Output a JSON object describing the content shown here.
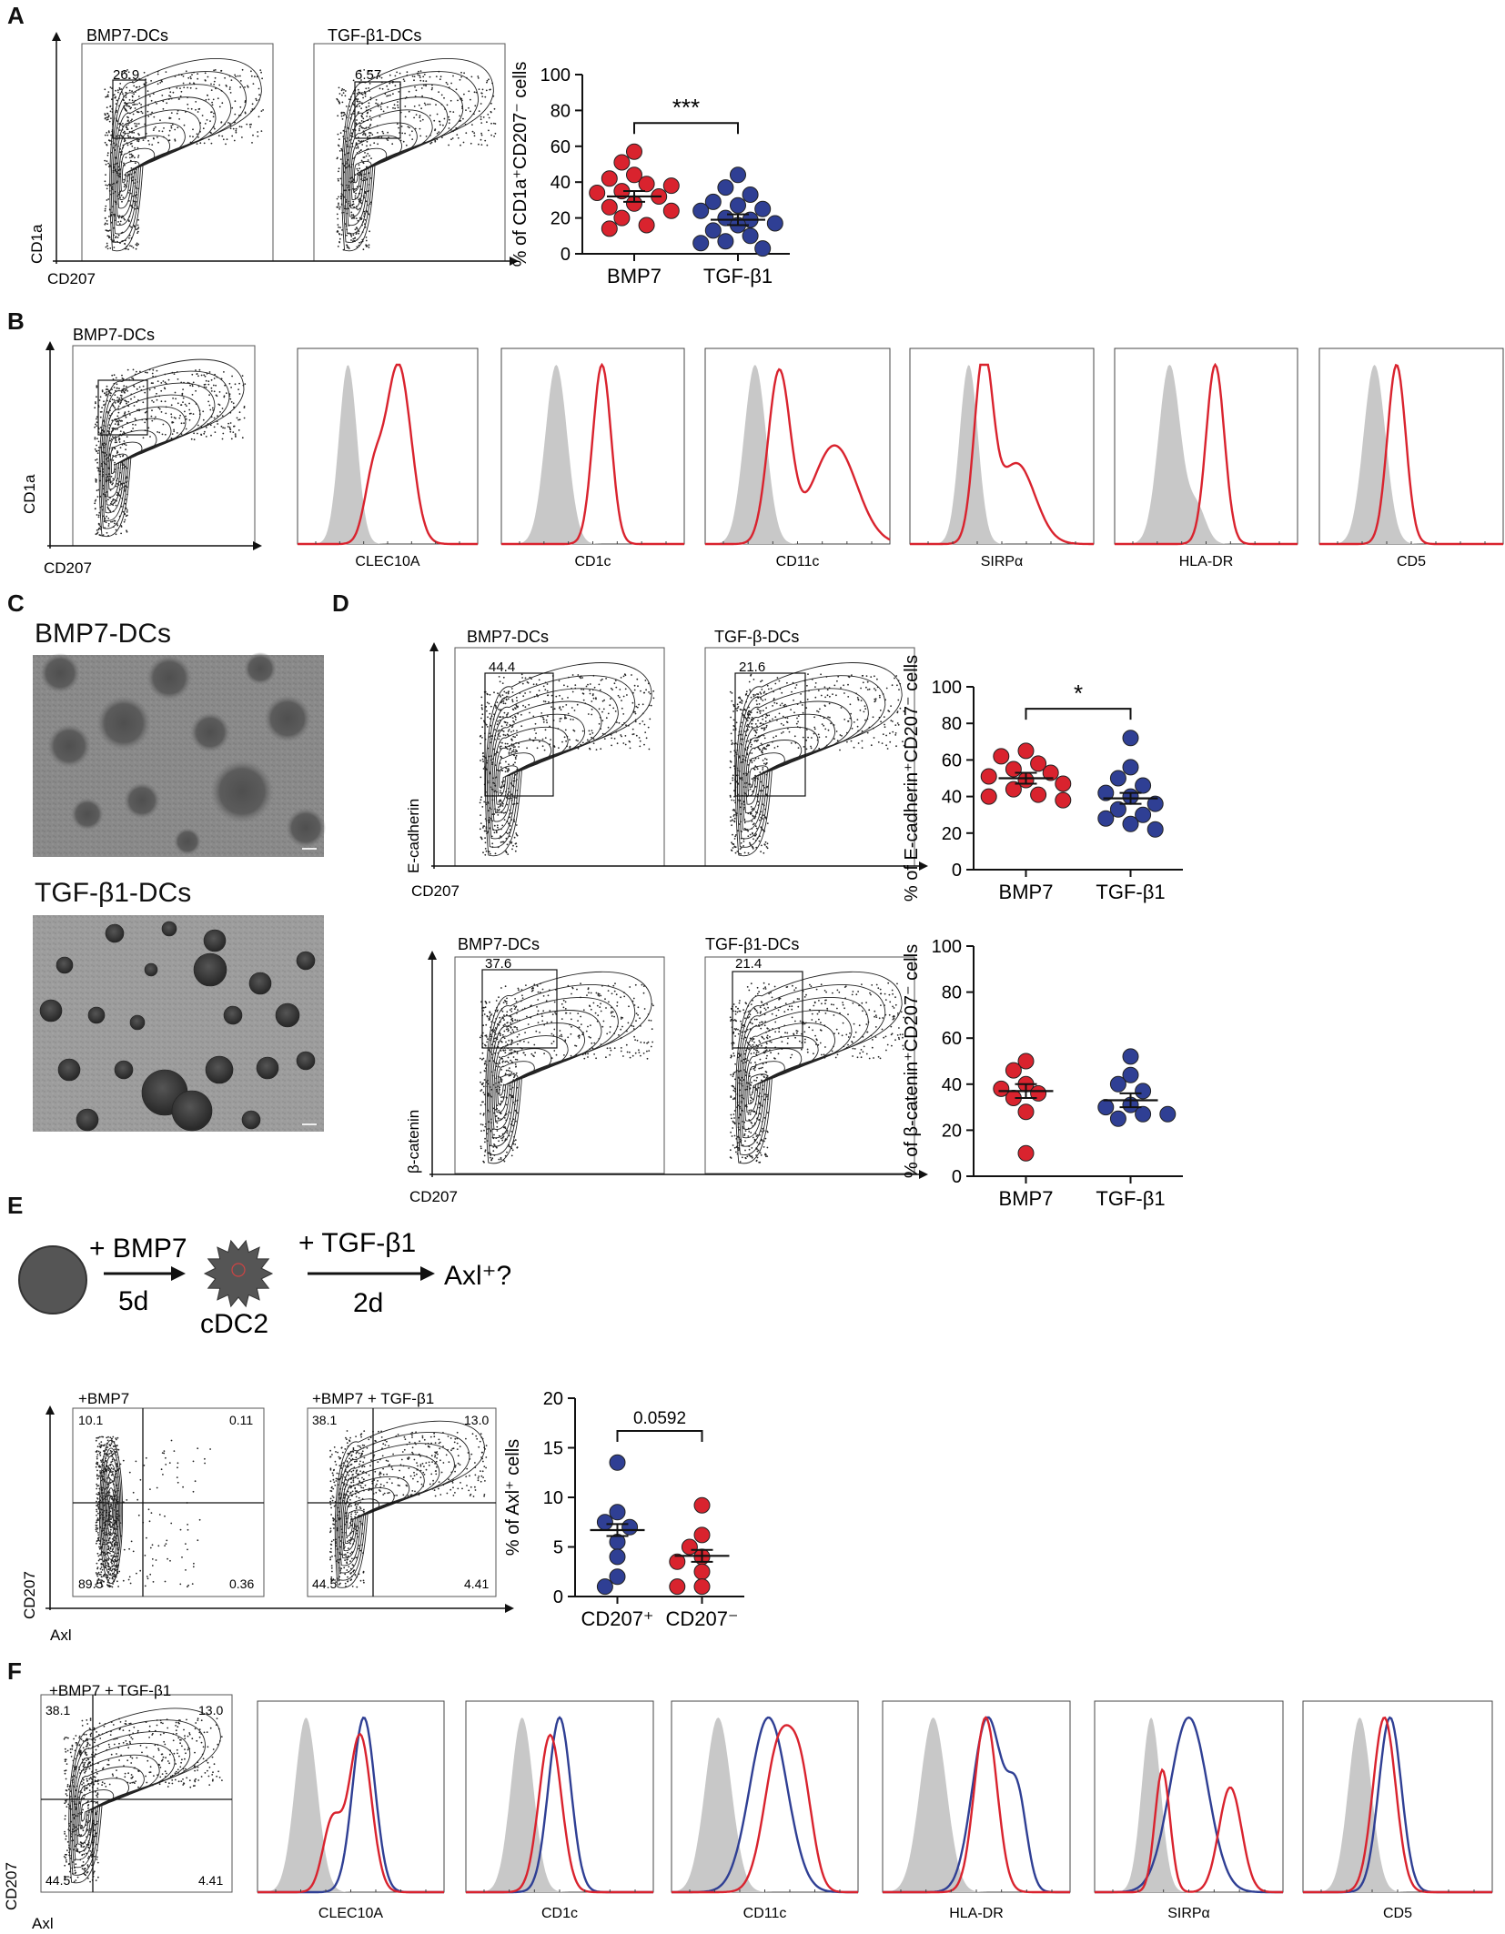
{
  "panels": {
    "A": {
      "letter": "A",
      "flow": {
        "left_title": "BMP7-DCs",
        "right_title": "TGF-β1-DCs",
        "left_gate": "26.9",
        "right_gate": "6.57",
        "xlabel": "CD207",
        "ylabel": "CD1a"
      }
    },
    "B": {
      "letter": "B",
      "flow": {
        "title": "BMP7-DCs",
        "xlabel": "CD207",
        "ylabel": "CD1a"
      },
      "histograms": [
        "CLEC10A",
        "CD1c",
        "CD11c",
        "SIRPα",
        "HLA-DR",
        "CD5"
      ]
    },
    "C": {
      "letter": "C",
      "top_label": "BMP7-DCs",
      "bottom_label": "TGF-β1-DCs"
    },
    "D": {
      "letter": "D",
      "top": {
        "left_title": "BMP7-DCs",
        "right_title": "TGF-β-DCs",
        "left_gate": "44.4",
        "right_gate": "21.6",
        "xlabel": "CD207",
        "ylabel": "E-cadherin"
      },
      "bottom": {
        "left_title": "BMP7-DCs",
        "right_title": "TGF-β1-DCs",
        "left_gate": "37.6",
        "right_gate": "21.4",
        "xlabel": "CD207",
        "ylabel": "β-catenin"
      }
    },
    "E": {
      "letter": "E",
      "schematic": {
        "step1": "+ BMP7",
        "step1_time": "5d",
        "cell_label": "cDC2",
        "step2": "+ TGF-β1",
        "step2_time": "2d",
        "result": "Axl⁺?"
      },
      "flow": {
        "left_title": "+BMP7",
        "right_title": "+BMP7 + TGF-β1",
        "left_quadrants": [
          "10.1",
          "0.11",
          "89.5",
          "0.36"
        ],
        "right_quadrants": [
          "38.1",
          "13.0",
          "44.5",
          "4.41"
        ],
        "xlabel": "Axl",
        "ylabel": "CD207"
      }
    },
    "F": {
      "letter": "F",
      "flow": {
        "title": "+BMP7 + TGF-β1",
        "quadrants": [
          "38.1",
          "13.0",
          "44.5",
          "4.41"
        ],
        "xlabel": "Axl",
        "ylabel": "CD207"
      },
      "histograms": [
        "CLEC10A",
        "CD1c",
        "CD11c",
        "HLA-DR",
        "SIRPα",
        "CD5"
      ]
    }
  },
  "colors": {
    "red": "#d9232e",
    "blue": "#2f3f94",
    "grey": "#c8c8c8"
  },
  "chart_data": [
    {
      "id": "A",
      "type": "scatter",
      "ylabel": "% of CD1a⁺CD207⁻ cells",
      "ylim": [
        0,
        100
      ],
      "yticks": [
        0,
        20,
        40,
        60,
        80,
        100
      ],
      "categories": [
        "BMP7",
        "TGF-β1"
      ],
      "series": [
        {
          "values": [
            57,
            51,
            44,
            42,
            39,
            38,
            35,
            34,
            32,
            28,
            26,
            24,
            20,
            16,
            14
          ],
          "color": "#d9232e",
          "mean": 32
        },
        {
          "values": [
            44,
            37,
            33,
            29,
            27,
            25,
            24,
            20,
            19,
            17,
            16,
            13,
            10,
            7,
            6,
            3
          ],
          "color": "#2f3f94",
          "mean": 19
        }
      ],
      "significance": "***"
    },
    {
      "id": "D-top",
      "type": "scatter",
      "ylabel": "% of E-cadherin⁺CD207⁻ cells",
      "ylim": [
        0,
        100
      ],
      "yticks": [
        0,
        20,
        40,
        60,
        80,
        100
      ],
      "categories": [
        "BMP7",
        "TGF-β1"
      ],
      "series": [
        {
          "values": [
            65,
            62,
            58,
            55,
            53,
            51,
            49,
            47,
            44,
            41,
            40,
            38
          ],
          "color": "#d9232e",
          "mean": 50
        },
        {
          "values": [
            72,
            56,
            50,
            46,
            42,
            40,
            36,
            33,
            30,
            28,
            25,
            22
          ],
          "color": "#2f3f94",
          "mean": 39
        }
      ],
      "significance": "*"
    },
    {
      "id": "D-bottom",
      "type": "scatter",
      "ylabel": "% of β-catenin⁺CD207⁻ cells",
      "ylim": [
        0,
        100
      ],
      "yticks": [
        0,
        20,
        40,
        60,
        80,
        100
      ],
      "categories": [
        "BMP7",
        "TGF-β1"
      ],
      "series": [
        {
          "values": [
            50,
            46,
            40,
            38,
            36,
            34,
            28,
            10
          ],
          "color": "#d9232e",
          "mean": 37
        },
        {
          "values": [
            52,
            44,
            40,
            37,
            31,
            30,
            27,
            27,
            25
          ],
          "color": "#2f3f94",
          "mean": 33
        }
      ],
      "significance": ""
    },
    {
      "id": "E",
      "type": "scatter",
      "ylabel": "% of Axl⁺ cells",
      "ylim": [
        0,
        20
      ],
      "yticks": [
        0,
        5,
        10,
        15,
        20
      ],
      "categories": [
        "CD207⁺",
        "CD207⁻"
      ],
      "series": [
        {
          "values": [
            13.5,
            8.5,
            7.5,
            7.0,
            5.5,
            4.0,
            2.0,
            1.0
          ],
          "color": "#2f3f94",
          "mean": 6.7
        },
        {
          "values": [
            9.2,
            6.2,
            5.0,
            4.0,
            3.5,
            2.5,
            1.0,
            1.0
          ],
          "color": "#d9232e",
          "mean": 4.1
        }
      ],
      "significance": "0.0592"
    }
  ]
}
